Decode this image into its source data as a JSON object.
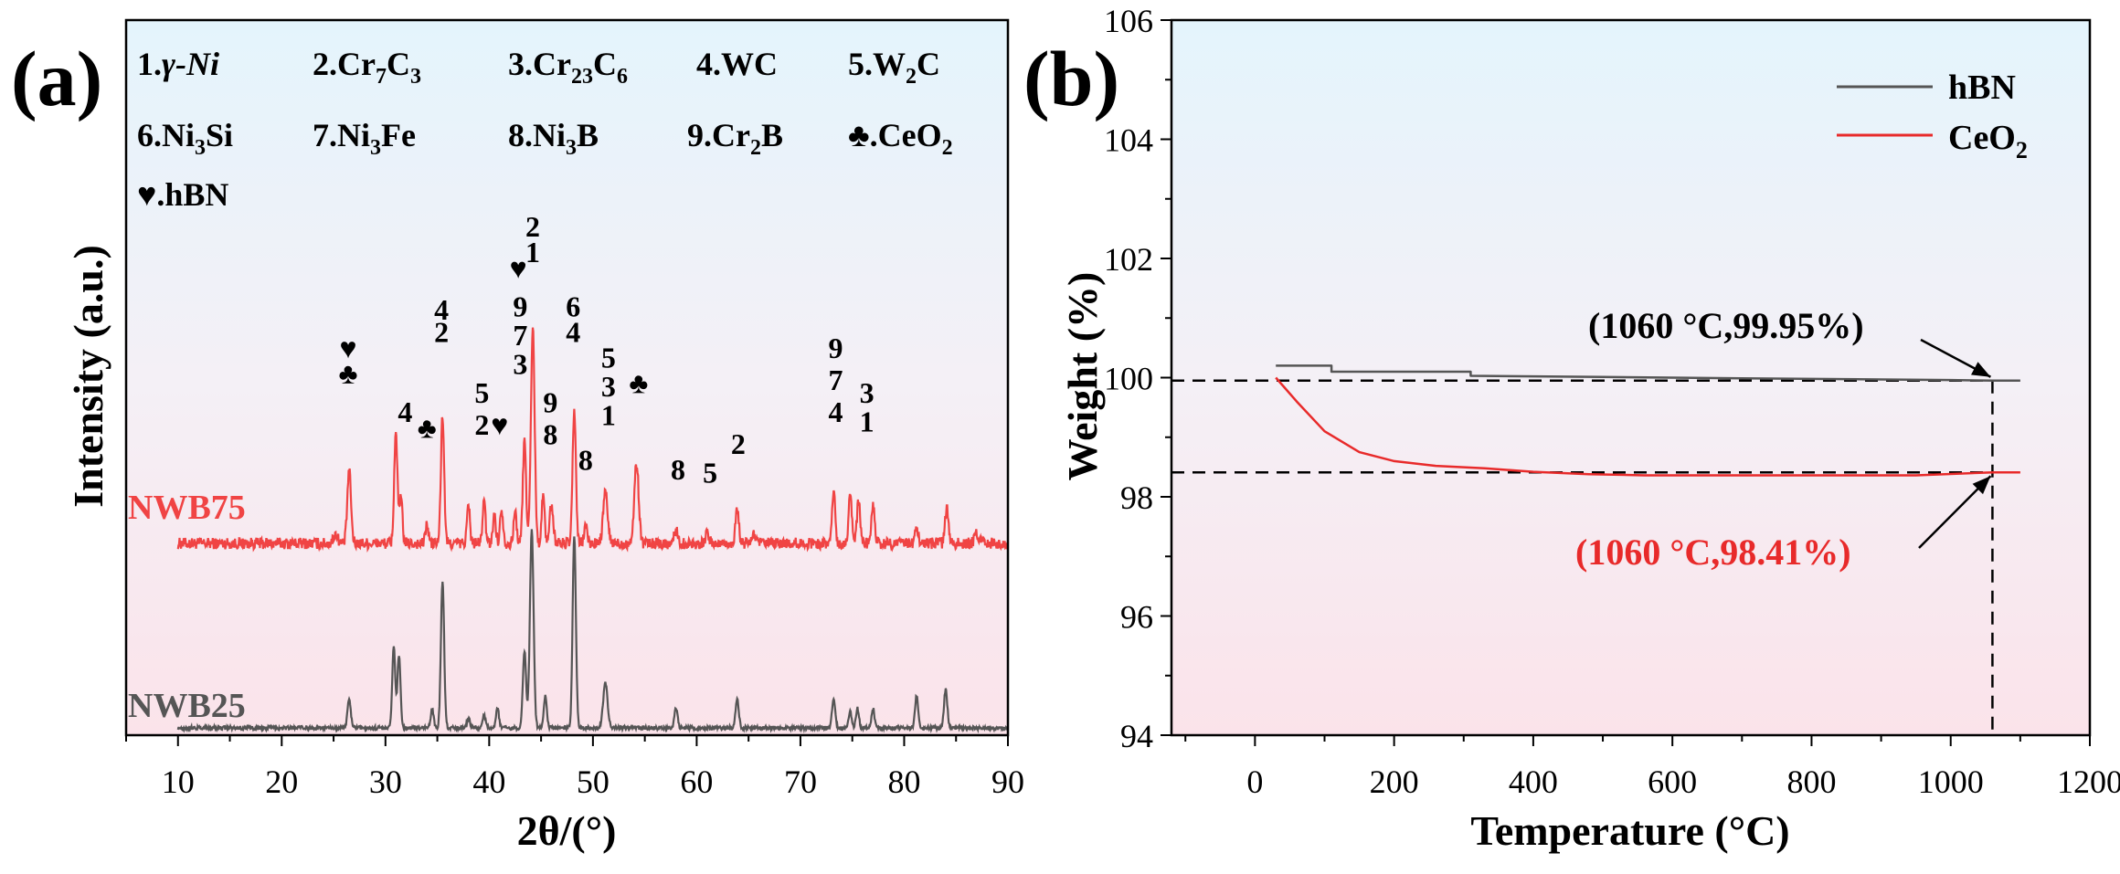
{
  "colors": {
    "nwb75": "#f04444",
    "nwb25": "#555555",
    "hbn": "#555555",
    "ceo2": "#e82a2a",
    "arrow": "#000000"
  },
  "panel_a": {
    "panel_label": "(a)",
    "legend": [
      {
        "num": "1.",
        "text": "γ-Ni"
      },
      {
        "num": "2.",
        "text": "Cr7C3"
      },
      {
        "num": "3.",
        "text": "Cr23C6"
      },
      {
        "num": "4.",
        "text": "WC"
      },
      {
        "num": "5.",
        "text": "W2C"
      },
      {
        "num": "6.",
        "text": "Ni3Si"
      },
      {
        "num": "7.",
        "text": "Ni3Fe"
      },
      {
        "num": "8.",
        "text": "Ni3B"
      },
      {
        "num": "9.",
        "text": "Cr2B"
      },
      {
        "num": "♣.",
        "text": "CeO2"
      },
      {
        "num": "♥.",
        "text": "hBN"
      }
    ],
    "sample_labels": {
      "nwb75": "NWB75",
      "nwb25": "NWB25"
    }
  },
  "panel_b": {
    "panel_label": "(b)",
    "legend": {
      "hbn": "hBN",
      "ceo2_base": "CeO",
      "ceo2_sub": "2"
    },
    "annotations": {
      "hbn": "(1060 °C,99.95%)",
      "ceo2": "(1060 °C,98.41%)"
    }
  },
  "chart_data": [
    {
      "type": "line",
      "title": "",
      "xlabel": "2θ/(°)",
      "ylabel": "Intensity (a.u.)",
      "xlim": [
        5,
        90
      ],
      "xticks": [
        10,
        20,
        30,
        40,
        50,
        60,
        70,
        80,
        90
      ],
      "series": [
        {
          "name": "NWB75",
          "baseline": 1.0,
          "noise": 0.06,
          "peaks": [
            [
              25.2,
              0.3,
              0.3
            ],
            [
              26.5,
              2.3,
              0.25
            ],
            [
              31.0,
              3.5,
              0.22
            ],
            [
              31.5,
              1.4,
              0.2
            ],
            [
              34.0,
              0.6,
              0.2
            ],
            [
              35.5,
              4.0,
              0.22
            ],
            [
              38.0,
              1.2,
              0.2
            ],
            [
              39.5,
              1.3,
              0.2
            ],
            [
              40.5,
              0.9,
              0.2
            ],
            [
              41.2,
              1.1,
              0.2
            ],
            [
              42.5,
              1.0,
              0.2
            ],
            [
              43.4,
              3.2,
              0.22
            ],
            [
              44.2,
              6.8,
              0.25
            ],
            [
              45.2,
              1.5,
              0.2
            ],
            [
              46.0,
              1.2,
              0.25
            ],
            [
              48.2,
              4.2,
              0.22
            ],
            [
              49.3,
              0.6,
              0.2
            ],
            [
              51.2,
              1.6,
              0.3
            ],
            [
              54.2,
              2.5,
              0.3
            ],
            [
              58.0,
              0.4,
              0.25
            ],
            [
              61.0,
              0.3,
              0.25
            ],
            [
              63.9,
              1.1,
              0.22
            ],
            [
              65.5,
              0.3,
              0.25
            ],
            [
              73.2,
              1.6,
              0.22
            ],
            [
              74.8,
              1.6,
              0.22
            ],
            [
              75.6,
              1.3,
              0.22
            ],
            [
              77.0,
              1.2,
              0.22
            ],
            [
              81.2,
              0.5,
              0.22
            ],
            [
              84.1,
              1.1,
              0.22
            ],
            [
              87.0,
              0.3,
              0.3
            ]
          ]
        },
        {
          "name": "NWB25",
          "baseline": 0.25,
          "noise": 0.04,
          "peaks": [
            [
              26.5,
              0.9,
              0.22
            ],
            [
              30.8,
              2.6,
              0.2
            ],
            [
              31.3,
              2.3,
              0.2
            ],
            [
              34.5,
              0.6,
              0.2
            ],
            [
              35.5,
              4.6,
              0.22
            ],
            [
              38.0,
              0.3,
              0.2
            ],
            [
              39.5,
              0.4,
              0.2
            ],
            [
              40.8,
              0.6,
              0.2
            ],
            [
              43.4,
              2.4,
              0.22
            ],
            [
              44.1,
              6.2,
              0.25
            ],
            [
              45.4,
              1.0,
              0.2
            ],
            [
              48.2,
              6.0,
              0.22
            ],
            [
              51.2,
              1.4,
              0.3
            ],
            [
              58.0,
              0.6,
              0.22
            ],
            [
              63.9,
              0.9,
              0.22
            ],
            [
              73.2,
              0.9,
              0.22
            ],
            [
              74.8,
              0.5,
              0.2
            ],
            [
              75.5,
              0.6,
              0.2
            ],
            [
              77.0,
              0.6,
              0.2
            ],
            [
              81.2,
              1.0,
              0.22
            ],
            [
              84.0,
              1.2,
              0.22
            ]
          ]
        }
      ],
      "peak_labels": [
        {
          "text": "♥",
          "x": 26.4,
          "y": 5.8
        },
        {
          "text": "♣",
          "x": 26.4,
          "y": 5.0
        },
        {
          "text": "4",
          "x": 31.9,
          "y": 3.8
        },
        {
          "text": "4",
          "x": 35.4,
          "y": 7.0
        },
        {
          "text": "2",
          "x": 35.4,
          "y": 6.3
        },
        {
          "text": "♣",
          "x": 34.0,
          "y": 3.3
        },
        {
          "text": "5",
          "x": 39.3,
          "y": 4.4
        },
        {
          "text": "2",
          "x": 39.3,
          "y": 3.4
        },
        {
          "text": "♥",
          "x": 41.0,
          "y": 3.4
        },
        {
          "text": "♥",
          "x": 42.8,
          "y": 8.3
        },
        {
          "text": "9",
          "x": 43.0,
          "y": 7.1
        },
        {
          "text": "7",
          "x": 43.0,
          "y": 6.2
        },
        {
          "text": "3",
          "x": 43.0,
          "y": 5.3
        },
        {
          "text": "2",
          "x": 44.2,
          "y": 9.6
        },
        {
          "text": "1",
          "x": 44.2,
          "y": 8.8
        },
        {
          "text": "9",
          "x": 45.9,
          "y": 4.1
        },
        {
          "text": "8",
          "x": 45.9,
          "y": 3.1
        },
        {
          "text": "6",
          "x": 48.1,
          "y": 7.1
        },
        {
          "text": "4",
          "x": 48.1,
          "y": 6.3
        },
        {
          "text": "5",
          "x": 51.5,
          "y": 5.5
        },
        {
          "text": "3",
          "x": 51.5,
          "y": 4.6
        },
        {
          "text": "1",
          "x": 51.5,
          "y": 3.7
        },
        {
          "text": "8",
          "x": 49.3,
          "y": 2.3
        },
        {
          "text": "♣",
          "x": 54.4,
          "y": 4.7
        },
        {
          "text": "8",
          "x": 58.2,
          "y": 2.0
        },
        {
          "text": "5",
          "x": 61.3,
          "y": 1.9
        },
        {
          "text": "2",
          "x": 64.0,
          "y": 2.8
        },
        {
          "text": "9",
          "x": 73.4,
          "y": 5.8
        },
        {
          "text": "7",
          "x": 73.4,
          "y": 4.8
        },
        {
          "text": "4",
          "x": 73.4,
          "y": 3.8
        },
        {
          "text": "3",
          "x": 76.4,
          "y": 4.4
        },
        {
          "text": "1",
          "x": 76.4,
          "y": 3.5
        }
      ]
    },
    {
      "type": "line",
      "title": "",
      "xlabel": "Temperature (°C)",
      "ylabel": "Weight (%)",
      "xlim": [
        -120,
        1200
      ],
      "ylim": [
        94,
        106
      ],
      "xticks": [
        0,
        200,
        400,
        600,
        800,
        1000,
        1200
      ],
      "yticks": [
        94,
        96,
        98,
        100,
        102,
        104,
        106
      ],
      "series": [
        {
          "name": "hBN",
          "x": [
            30,
            110,
            110,
            310,
            310,
            500,
            700,
            900,
            1000,
            1060,
            1100
          ],
          "y": [
            100.2,
            100.2,
            100.1,
            100.1,
            100.03,
            100.01,
            99.99,
            99.97,
            99.96,
            99.95,
            99.95
          ]
        },
        {
          "name": "CeO2",
          "x": [
            30,
            60,
            100,
            150,
            200,
            260,
            330,
            400,
            480,
            560,
            650,
            800,
            950,
            1060,
            1100
          ],
          "y": [
            100.0,
            99.6,
            99.1,
            98.75,
            98.6,
            98.52,
            98.48,
            98.42,
            98.38,
            98.36,
            98.36,
            98.36,
            98.36,
            98.41,
            98.41
          ]
        }
      ],
      "reference_lines": {
        "x": 1060,
        "y": [
          99.95,
          98.41
        ]
      }
    }
  ]
}
